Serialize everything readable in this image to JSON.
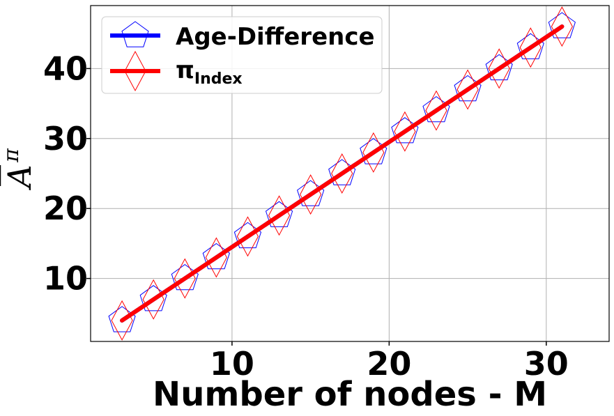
{
  "chart_data": {
    "type": "line",
    "xlabel": "Number of nodes - M",
    "ylabel_base": "A",
    "ylabel_sup": "π",
    "xlim": [
      1,
      34
    ],
    "ylim": [
      1,
      49
    ],
    "xticks": [
      10,
      20,
      30
    ],
    "yticks": [
      10,
      20,
      30,
      40
    ],
    "grid": true,
    "legend_position": "top-left",
    "series": [
      {
        "name": "Age-Difference",
        "color": "#0000ff",
        "marker": "pentagon",
        "x": [
          3,
          5,
          7,
          9,
          11,
          13,
          15,
          17,
          19,
          21,
          23,
          25,
          27,
          29,
          31
        ],
        "y": [
          4,
          7,
          10,
          13,
          16,
          19,
          22,
          25,
          28,
          31,
          34,
          37,
          40,
          43,
          46
        ]
      },
      {
        "name_main": "π",
        "name_sub": "Index",
        "color": "#ff0000",
        "marker": "thin-diamond",
        "x": [
          3,
          5,
          7,
          9,
          11,
          13,
          15,
          17,
          19,
          21,
          23,
          25,
          27,
          29,
          31
        ],
        "y": [
          4,
          7,
          10,
          13,
          16,
          19,
          22,
          25,
          28,
          31,
          34,
          37,
          40,
          43,
          46
        ]
      }
    ]
  }
}
